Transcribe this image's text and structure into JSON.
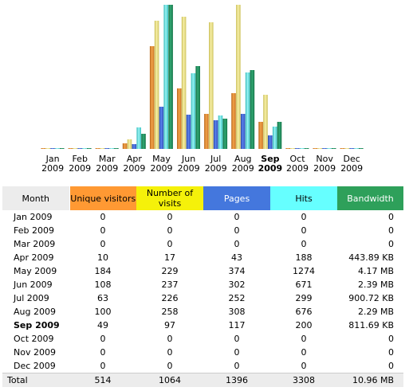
{
  "chart_data": {
    "type": "bar",
    "categories": [
      "Jan 2009",
      "Feb 2009",
      "Mar 2009",
      "Apr 2009",
      "May 2009",
      "Jun 2009",
      "Jul 2009",
      "Aug 2009",
      "Sep 2009",
      "Oct 2009",
      "Nov 2009",
      "Dec 2009"
    ],
    "current_month": "Sep 2009",
    "series": [
      {
        "key": "unique",
        "values": [
          0,
          0,
          0,
          10,
          184,
          108,
          63,
          100,
          49,
          0,
          0,
          0
        ]
      },
      {
        "key": "visits",
        "values": [
          0,
          0,
          0,
          17,
          229,
          237,
          226,
          258,
          97,
          0,
          0,
          0
        ]
      },
      {
        "key": "pages",
        "values": [
          0,
          0,
          0,
          43,
          374,
          302,
          252,
          308,
          117,
          0,
          0,
          0
        ]
      },
      {
        "key": "hits",
        "values": [
          0,
          0,
          0,
          188,
          1274,
          671,
          299,
          676,
          200,
          0,
          0,
          0
        ]
      },
      {
        "key": "bandwidth",
        "values": [
          "0",
          "0",
          "0",
          "443.89 KB",
          "4.17 MB",
          "2.39 MB",
          "900.72 KB",
          "2.29 MB",
          "811.69 KB",
          "0",
          "0",
          "0"
        ]
      }
    ],
    "bandwidth_kb": [
      0,
      0,
      0,
      443.89,
      4270.08,
      2447.36,
      900.72,
      2344.96,
      811.69,
      0,
      0,
      0
    ]
  },
  "month_labels": [
    {
      "m": "Jan",
      "y": "2009"
    },
    {
      "m": "Feb",
      "y": "2009"
    },
    {
      "m": "Mar",
      "y": "2009"
    },
    {
      "m": "Apr",
      "y": "2009"
    },
    {
      "m": "May",
      "y": "2009"
    },
    {
      "m": "Jun",
      "y": "2009"
    },
    {
      "m": "Jul",
      "y": "2009"
    },
    {
      "m": "Aug",
      "y": "2009"
    },
    {
      "m": "Sep",
      "y": "2009"
    },
    {
      "m": "Oct",
      "y": "2009"
    },
    {
      "m": "Nov",
      "y": "2009"
    },
    {
      "m": "Dec",
      "y": "2009"
    }
  ],
  "colors": {
    "unique": "#e8912c",
    "visits": "#ece28a",
    "pages": "#3d63d6",
    "hits": "#5fe0e0",
    "bandwidth": "#1e8e5a"
  },
  "table": {
    "headers": {
      "month": "Month",
      "unique": "Unique visitors",
      "visits": "Number of visits",
      "pages": "Pages",
      "hits": "Hits",
      "bandwidth": "Bandwidth"
    },
    "rows": [
      {
        "month": "Jan 2009",
        "unique": "0",
        "visits": "0",
        "pages": "0",
        "hits": "0",
        "bandwidth": "0"
      },
      {
        "month": "Feb 2009",
        "unique": "0",
        "visits": "0",
        "pages": "0",
        "hits": "0",
        "bandwidth": "0"
      },
      {
        "month": "Mar 2009",
        "unique": "0",
        "visits": "0",
        "pages": "0",
        "hits": "0",
        "bandwidth": "0"
      },
      {
        "month": "Apr 2009",
        "unique": "10",
        "visits": "17",
        "pages": "43",
        "hits": "188",
        "bandwidth": "443.89 KB"
      },
      {
        "month": "May 2009",
        "unique": "184",
        "visits": "229",
        "pages": "374",
        "hits": "1274",
        "bandwidth": "4.17 MB"
      },
      {
        "month": "Jun 2009",
        "unique": "108",
        "visits": "237",
        "pages": "302",
        "hits": "671",
        "bandwidth": "2.39 MB"
      },
      {
        "month": "Jul 2009",
        "unique": "63",
        "visits": "226",
        "pages": "252",
        "hits": "299",
        "bandwidth": "900.72 KB"
      },
      {
        "month": "Aug 2009",
        "unique": "100",
        "visits": "258",
        "pages": "308",
        "hits": "676",
        "bandwidth": "2.29 MB"
      },
      {
        "month": "Sep 2009",
        "unique": "49",
        "visits": "97",
        "pages": "117",
        "hits": "200",
        "bandwidth": "811.69 KB"
      },
      {
        "month": "Oct 2009",
        "unique": "0",
        "visits": "0",
        "pages": "0",
        "hits": "0",
        "bandwidth": "0"
      },
      {
        "month": "Nov 2009",
        "unique": "0",
        "visits": "0",
        "pages": "0",
        "hits": "0",
        "bandwidth": "0"
      },
      {
        "month": "Dec 2009",
        "unique": "0",
        "visits": "0",
        "pages": "0",
        "hits": "0",
        "bandwidth": "0"
      }
    ],
    "total": {
      "month": "Total",
      "unique": "514",
      "visits": "1064",
      "pages": "1396",
      "hits": "3308",
      "bandwidth": "10.96 MB"
    }
  }
}
